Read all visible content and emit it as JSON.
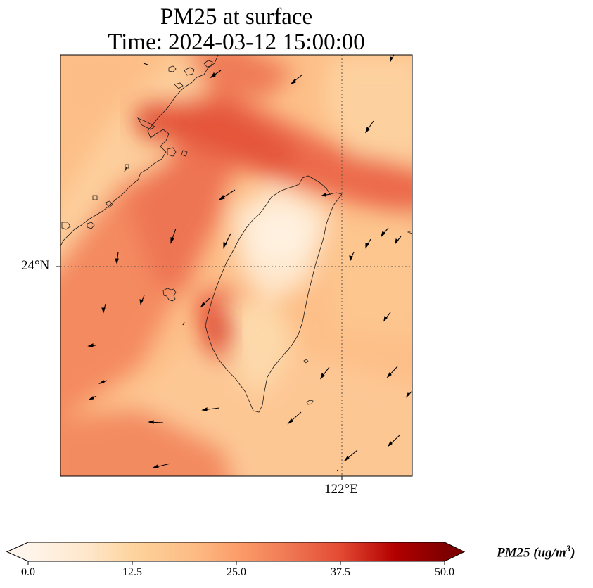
{
  "title": {
    "line1": "PM25 at surface",
    "line2": "Time: 2024-03-12 15:00:00"
  },
  "map": {
    "lat_tick_label": "24°N",
    "lon_tick_label": "122°E",
    "grid_style": "dotted",
    "region": "Taiwan Strait and Taiwan",
    "colormap": [
      "#fff5eb",
      "#fdd49e",
      "#fdbb84",
      "#fc8d59",
      "#ef6548",
      "#d7301f",
      "#b30000",
      "#7f0000"
    ]
  },
  "colorbar": {
    "label_main": "PM25 (ug/m",
    "label_sup": "3",
    "label_close": ")",
    "vmin": 0.0,
    "vmax": 50.0,
    "ticks": [
      "0.0",
      "12.5",
      "25.0",
      "37.5",
      "50.0"
    ],
    "extend": "both"
  }
}
